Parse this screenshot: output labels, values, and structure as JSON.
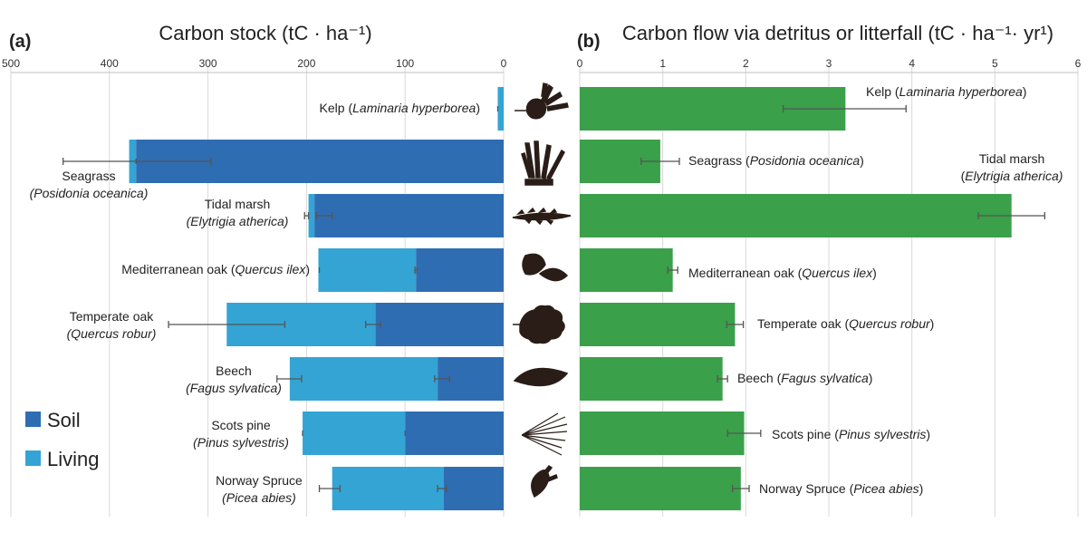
{
  "chart_data": [
    {
      "panel": "(a)",
      "type": "bar",
      "orientation": "horizontal-stacked",
      "title": "Carbon stock (tC · ha⁻¹)",
      "xlim": [
        0,
        500
      ],
      "ticks": [
        500,
        400,
        300,
        200,
        100,
        0
      ],
      "legend": {
        "placement": "bottom-left",
        "items": [
          {
            "name": "Soil",
            "color": "#2f6db3"
          },
          {
            "name": "Living",
            "color": "#34a4d4"
          }
        ]
      },
      "categories": [
        {
          "label1": "Kelp (",
          "italic": "Laminaria hyperborea",
          "label2": ")"
        },
        {
          "label1": "Seagrass",
          "italic": "(Posidonia oceanica)",
          "label2": ""
        },
        {
          "label1": "Tidal marsh",
          "italic": "(Elytrigia atherica)",
          "label2": ""
        },
        {
          "label1": "Mediterranean oak (",
          "italic": "Quercus ilex",
          "label2": ")"
        },
        {
          "label1": "Temperate oak",
          "italic": "(Quercus robur)",
          "label2": ""
        },
        {
          "label1": "Beech",
          "italic": "(Fagus sylvatica)",
          "label2": ""
        },
        {
          "label1": "Scots pine",
          "italic": "(Pinus sylvestris)",
          "label2": ""
        },
        {
          "label1": "Norway Spruce",
          "italic": "(Picea abies)",
          "label2": ""
        }
      ],
      "series": [
        {
          "name": "Soil",
          "values": [
            0,
            373,
            192,
            89,
            130,
            67,
            100,
            61
          ],
          "error": [
            [
              0,
              0
            ],
            [
              373,
              373
            ],
            [
              190,
              174
            ],
            [
              88,
              90
            ],
            [
              125,
              140
            ],
            [
              70,
              55
            ],
            [
              100,
              100
            ],
            [
              58,
              67
            ]
          ]
        },
        {
          "name": "Living",
          "values": [
            6,
            7,
            6,
            99,
            151,
            150,
            104,
            113
          ],
          "error": [
            [
              6,
              6
            ],
            [
              447,
              297
            ],
            [
              202,
              198
            ],
            [
              187,
              187
            ],
            [
              340,
              222
            ],
            [
              230,
              205
            ],
            [
              204,
              204
            ],
            [
              187,
              166
            ]
          ]
        }
      ]
    },
    {
      "panel": "(b)",
      "type": "bar",
      "orientation": "horizontal",
      "title": "Carbon flow via detritus or litterfall (tC · ha⁻¹· yr¹)",
      "xlim": [
        0,
        6
      ],
      "ticks": [
        0,
        1,
        2,
        3,
        4,
        5,
        6
      ],
      "color": "#3aa04a",
      "categories": [
        {
          "label1": "Kelp (",
          "italic": "Laminaria hyperborea",
          "label2": ")"
        },
        {
          "label1": "Seagrass (",
          "italic": "Posidonia oceanica",
          "label2": ")"
        },
        {
          "label1": "Tidal marsh",
          "italic": "Elytrigia atherica)",
          "label2": "("
        },
        {
          "label1": "Mediterranean oak (",
          "italic": "Quercus ilex",
          "label2": ")"
        },
        {
          "label1": "Temperate oak (",
          "italic": "Quercus robur",
          "label2": ")"
        },
        {
          "label1": "Beech (",
          "italic": "Fagus sylvatica",
          "label2": ")"
        },
        {
          "label1": "Scots pine (",
          "italic": "Pinus sylvestris",
          "label2": ")"
        },
        {
          "label1": "Norway Spruce (",
          "italic": "Picea abies",
          "label2": ")"
        }
      ],
      "values": [
        3.2,
        0.97,
        5.2,
        1.12,
        1.87,
        1.72,
        1.98,
        1.94
      ],
      "error": [
        [
          2.45,
          3.93
        ],
        [
          0.74,
          1.2
        ],
        [
          4.8,
          5.6
        ],
        [
          1.06,
          1.18
        ],
        [
          1.77,
          1.97
        ],
        [
          1.66,
          1.78
        ],
        [
          1.78,
          2.18
        ],
        [
          1.84,
          2.04
        ]
      ]
    }
  ]
}
